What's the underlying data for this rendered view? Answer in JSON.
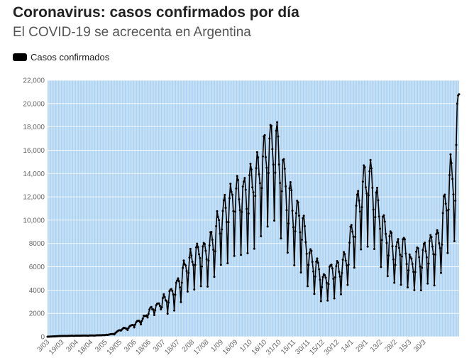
{
  "chart_data": {
    "type": "line",
    "title": "Coronavirus: casos confirmados por día",
    "subtitle": "El COVID-19 se acrecenta en Argentina",
    "legend": [
      {
        "name": "Casos confirmados",
        "color": "#000000"
      }
    ],
    "legend_position": "top-left",
    "xlabel": "",
    "ylabel": "",
    "ylim": [
      0,
      22000
    ],
    "yticks": [
      "0",
      "2000",
      "4000",
      "6000",
      "8000",
      "10,000",
      "12,000",
      "14,000",
      "16,000",
      "18,000",
      "20,000",
      "22,000"
    ],
    "yvalues": [
      0,
      2000,
      4000,
      6000,
      8000,
      10000,
      12000,
      14000,
      16000,
      18000,
      20000,
      22000
    ],
    "xtick_labels": [
      "3/03",
      "19/03",
      "3/04",
      "18/04",
      "3/05",
      "19/05",
      "3/06",
      "18/06",
      "3/07",
      "18/07",
      "2/08",
      "17/08",
      "1/09",
      "16/09",
      "1/10",
      "16/10",
      "31/10",
      "15/11",
      "30/11",
      "15/12",
      "30/12",
      "14/1",
      "29/1",
      "13/2",
      "28/2",
      "15/3",
      "30/3"
    ],
    "grid": true,
    "plot_background": "#9ecbef",
    "series": [
      {
        "name": "Casos confirmados",
        "color": "#000000",
        "anchors": [
          [
            0,
            0
          ],
          [
            14,
            60
          ],
          [
            30,
            90
          ],
          [
            45,
            100
          ],
          [
            60,
            140
          ],
          [
            70,
            250
          ],
          [
            77,
            650
          ],
          [
            84,
            750
          ],
          [
            90,
            1000
          ],
          [
            100,
            1500
          ],
          [
            107,
            2200
          ],
          [
            115,
            2600
          ],
          [
            122,
            3000
          ],
          [
            129,
            3500
          ],
          [
            137,
            4300
          ],
          [
            145,
            5800
          ],
          [
            153,
            6500
          ],
          [
            160,
            7000
          ],
          [
            168,
            7000
          ],
          [
            175,
            8200
          ],
          [
            183,
            10000
          ],
          [
            191,
            11000
          ],
          [
            198,
            11800
          ],
          [
            206,
            11500
          ],
          [
            214,
            12500
          ],
          [
            221,
            13500
          ],
          [
            229,
            15000
          ],
          [
            237,
            16000
          ],
          [
            240,
            15800
          ],
          [
            245,
            14000
          ],
          [
            252,
            11500
          ],
          [
            260,
            10000
          ],
          [
            267,
            9500
          ],
          [
            275,
            6500
          ],
          [
            283,
            5800
          ],
          [
            290,
            4500
          ],
          [
            298,
            5500
          ],
          [
            306,
            5500
          ],
          [
            314,
            6500
          ],
          [
            320,
            8500
          ],
          [
            325,
            10500
          ],
          [
            330,
            12000
          ],
          [
            337,
            13000
          ],
          [
            344,
            11500
          ],
          [
            350,
            9500
          ],
          [
            358,
            8000
          ],
          [
            366,
            7000
          ],
          [
            373,
            7500
          ],
          [
            381,
            6000
          ],
          [
            389,
            6500
          ],
          [
            396,
            7000
          ],
          [
            404,
            7500
          ],
          [
            412,
            8000
          ],
          [
            419,
            11500
          ],
          [
            424,
            13500
          ],
          [
            428,
            12500
          ],
          [
            432,
            20800
          ]
        ]
      }
    ]
  }
}
